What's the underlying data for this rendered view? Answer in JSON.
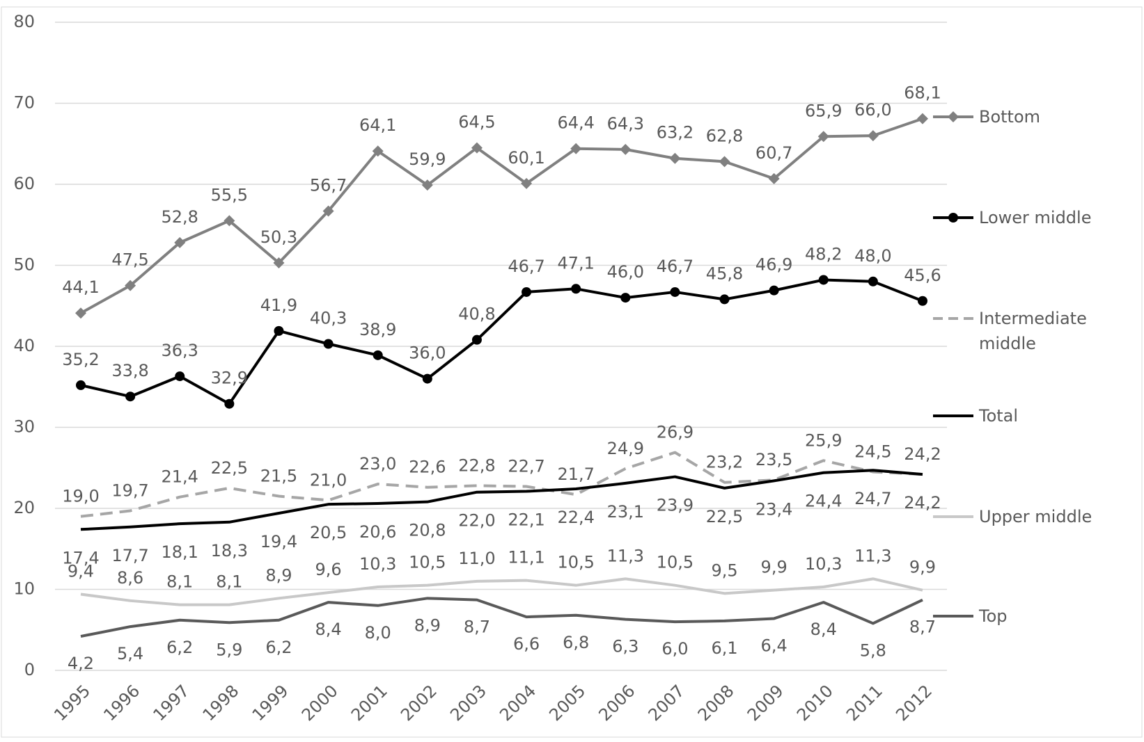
{
  "chart_data": {
    "type": "line",
    "categories": [
      "1995",
      "1996",
      "1997",
      "1998",
      "1999",
      "2000",
      "2001",
      "2002",
      "2003",
      "2004",
      "2005",
      "2006",
      "2007",
      "2008",
      "2009",
      "2010",
      "2011",
      "2012"
    ],
    "ylim": [
      0,
      80
    ],
    "yticks": [
      0,
      10,
      20,
      30,
      40,
      50,
      60,
      70,
      80
    ],
    "grid": true,
    "legend": "right",
    "series": [
      {
        "name": "Bottom",
        "color": "#808080",
        "marker": "diamond",
        "values": [
          44.1,
          47.5,
          52.8,
          55.5,
          50.3,
          56.7,
          64.1,
          59.9,
          64.5,
          60.1,
          64.4,
          64.3,
          63.2,
          62.8,
          60.7,
          65.9,
          66.0,
          68.1
        ],
        "value_labels": [
          "44,1",
          "47,5",
          "52,8",
          "55,5",
          "50,3",
          "56,7",
          "64,1",
          "59,9",
          "64,5",
          "60,1",
          "64,4",
          "64,3",
          "63,2",
          "62,8",
          "60,7",
          "65,9",
          "66,0",
          "68,1"
        ]
      },
      {
        "name": "Lower middle",
        "color": "#000000",
        "marker": "circle",
        "values": [
          35.2,
          33.8,
          36.3,
          32.9,
          41.9,
          40.3,
          38.9,
          36.0,
          40.8,
          46.7,
          47.1,
          46.0,
          46.7,
          45.8,
          46.9,
          48.2,
          48.0,
          45.6
        ],
        "value_labels": [
          "35,2",
          "33,8",
          "36,3",
          "32,9",
          "41,9",
          "40,3",
          "38,9",
          "36,0",
          "40,8",
          "46,7",
          "47,1",
          "46,0",
          "46,7",
          "45,8",
          "46,9",
          "48,2",
          "48,0",
          "45,6"
        ]
      },
      {
        "name": "Intermediate middle",
        "color": "#a6a6a6",
        "dashed": true,
        "values": [
          19.0,
          19.7,
          21.4,
          22.5,
          21.5,
          21.0,
          23.0,
          22.6,
          22.8,
          22.7,
          21.7,
          24.9,
          26.9,
          23.2,
          23.5,
          25.9,
          24.5,
          24.2
        ],
        "value_labels": [
          "19,0",
          "19,7",
          "21,4",
          "22,5",
          "21,5",
          "21,0",
          "23,0",
          "22,6",
          "22,8",
          "22,7",
          "21,7",
          "24,9",
          "26,9",
          "23,2",
          "23,5",
          "25,9",
          "24,5",
          "24,2"
        ]
      },
      {
        "name": "Total",
        "color": "#000000",
        "values": [
          17.4,
          17.7,
          18.1,
          18.3,
          19.4,
          20.5,
          20.6,
          20.8,
          22.0,
          22.1,
          22.4,
          23.1,
          23.9,
          22.5,
          23.4,
          24.4,
          24.7,
          24.2
        ],
        "value_labels": [
          "17,4",
          "17,7",
          "18,1",
          "18,3",
          "19,4",
          "20,5",
          "20,6",
          "20,8",
          "22,0",
          "22,1",
          "22,4",
          "23,1",
          "23,9",
          "22,5",
          "23,4",
          "24,4",
          "24,7",
          "24,2"
        ]
      },
      {
        "name": "Upper middle",
        "color": "#c8c8c8",
        "values": [
          9.4,
          8.6,
          8.1,
          8.1,
          8.9,
          9.6,
          10.3,
          10.5,
          11.0,
          11.1,
          10.5,
          11.3,
          10.5,
          9.5,
          9.9,
          10.3,
          11.3,
          9.9
        ],
        "value_labels": [
          "9,4",
          "8,6",
          "8,1",
          "8,1",
          "8,9",
          "9,6",
          "10,3",
          "10,5",
          "11,0",
          "11,1",
          "10,5",
          "11,3",
          "10,5",
          "9,5",
          "9,9",
          "10,3",
          "11,3",
          "9,9"
        ]
      },
      {
        "name": "Top",
        "color": "#595959",
        "values": [
          4.2,
          5.4,
          6.2,
          5.9,
          6.2,
          8.4,
          8.0,
          8.9,
          8.7,
          6.6,
          6.8,
          6.3,
          6.0,
          6.1,
          6.4,
          8.4,
          5.8,
          8.7
        ],
        "value_labels": [
          "4,2",
          "5,4",
          "6,2",
          "5,9",
          "6,2",
          "8,4",
          "8,0",
          "8,9",
          "8,7",
          "6,6",
          "6,8",
          "6,3",
          "6,0",
          "6,1",
          "6,4",
          "8,4",
          "5,8",
          "8,7"
        ]
      }
    ]
  }
}
